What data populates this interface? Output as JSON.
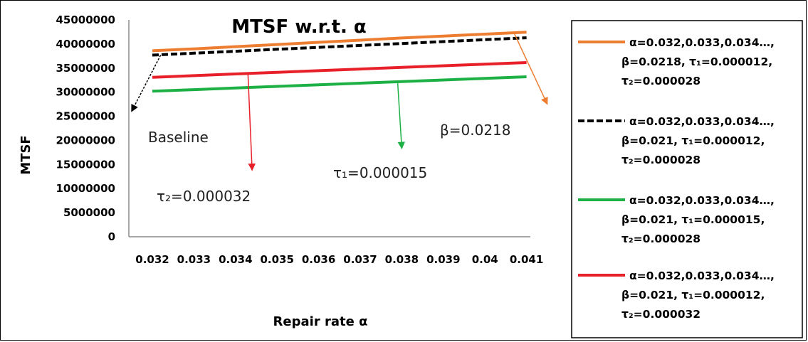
{
  "chart_data": {
    "type": "line",
    "title": "MTSF w.r.t. α",
    "xlabel": "Repair rate α",
    "ylabel": "MTSF",
    "x": [
      0.032,
      0.033,
      0.034,
      0.035,
      0.036,
      0.037,
      0.038,
      0.039,
      0.04,
      0.041
    ],
    "x_tick_labels": [
      "0.032",
      "0.033",
      "0.034",
      "0.035",
      "0.036",
      "0.037",
      "0.038",
      "0.039",
      "0.04",
      "0.041"
    ],
    "ylim": [
      0,
      45000000
    ],
    "y_ticks": [
      0,
      5000000,
      10000000,
      15000000,
      20000000,
      25000000,
      30000000,
      35000000,
      40000000,
      45000000
    ],
    "y_tick_labels": [
      "0",
      "5000000",
      "10000000",
      "15000000",
      "20000000",
      "25000000",
      "30000000",
      "35000000",
      "40000000",
      "45000000"
    ],
    "grid": false,
    "legend_position": "right",
    "series": [
      {
        "key": "beta",
        "color": "#ED7D31",
        "dash": "solid",
        "legend": [
          "α=0.032,0.033,0.034…,",
          "β=0.0218, τ₁=0.000012,",
          "τ₂=0.000028"
        ],
        "values": [
          38600000,
          39000000,
          39450000,
          39900000,
          40350000,
          40800000,
          41250000,
          41650000,
          42050000,
          42450000
        ]
      },
      {
        "key": "baseline",
        "color": "#000000",
        "dash": "dashed",
        "legend": [
          "α=0.032,0.033,0.034…,",
          "β=0.021, τ₁=0.000012,",
          "τ₂=0.000028"
        ],
        "values": [
          37700000,
          38100000,
          38500000,
          38900000,
          39300000,
          39700000,
          40100000,
          40500000,
          40900000,
          41300000
        ]
      },
      {
        "key": "tau1",
        "color": "#1DB045",
        "dash": "solid",
        "legend": [
          "α=0.032,0.033,0.034…,",
          "β=0.021, τ₁=0.000015,",
          "τ₂=0.000028"
        ],
        "values": [
          30200000,
          30530000,
          30870000,
          31200000,
          31530000,
          31870000,
          32200000,
          32530000,
          32870000,
          33200000
        ]
      },
      {
        "key": "tau2",
        "color": "#E8202A",
        "dash": "solid",
        "legend": [
          "α=0.032,0.033,0.034…,",
          "β=0.021, τ₁=0.000012,",
          "τ₂=0.000032"
        ],
        "values": [
          33100000,
          33440000,
          33780000,
          34120000,
          34460000,
          34800000,
          35140000,
          35480000,
          35820000,
          36150000
        ]
      }
    ],
    "annotations": [
      {
        "key": "baseline",
        "text": "Baseline",
        "color": "#000000",
        "dash": "dashed",
        "arrow_from": [
          0.0322,
          37700000
        ],
        "arrow_to": [
          0.0315,
          26000000
        ]
      },
      {
        "key": "tau2",
        "text": "τ₂=0.000032",
        "color": "#E8202A",
        "dash": "solid",
        "arrow_from": [
          0.0343,
          33800000
        ],
        "arrow_to": [
          0.0344,
          13800000
        ]
      },
      {
        "key": "tau1",
        "text": "τ₁=0.000015",
        "color": "#1DB045",
        "dash": "solid",
        "arrow_from": [
          0.0379,
          32100000
        ],
        "arrow_to": [
          0.038,
          18300000
        ]
      },
      {
        "key": "beta",
        "text": "β=0.0218",
        "color": "#ED7D31",
        "dash": "solid",
        "arrow_from": [
          0.0407,
          42300000
        ],
        "arrow_to": [
          0.0415,
          27500000
        ]
      }
    ]
  }
}
